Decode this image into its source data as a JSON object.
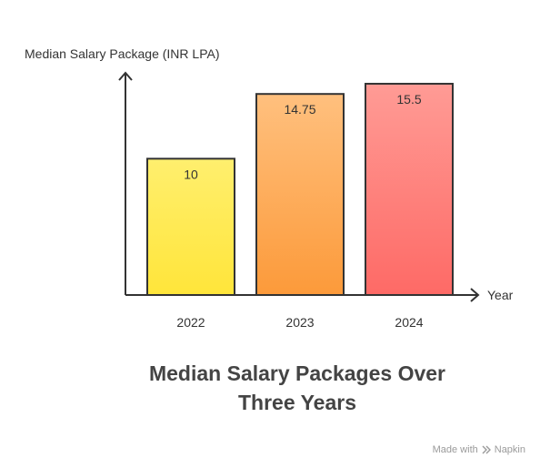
{
  "chart_data": {
    "type": "bar",
    "title_line1": "Median Salary Packages Over",
    "title_line2": "Three Years",
    "xlabel": "Year",
    "ylabel": "Median Salary Package (INR LPA)",
    "categories": [
      "2022",
      "2023",
      "2024"
    ],
    "values": [
      10,
      14.75,
      15.5
    ],
    "value_labels": [
      "10",
      "14.75",
      "15.5"
    ],
    "ylim": [
      0,
      16.3
    ],
    "grid": false,
    "legend": "none",
    "gradients": [
      {
        "top": "#ffef6e",
        "bottom": "#ffe53a",
        "stroke": "#333333"
      },
      {
        "top": "#ffc07e",
        "bottom": "#fc9a3a",
        "stroke": "#333333"
      },
      {
        "top": "#ff9b95",
        "bottom": "#fe6a66",
        "stroke": "#333333"
      }
    ]
  },
  "watermark": {
    "prefix": "Made with",
    "brand": "Napkin",
    "icon": "napkin-logo-icon"
  }
}
